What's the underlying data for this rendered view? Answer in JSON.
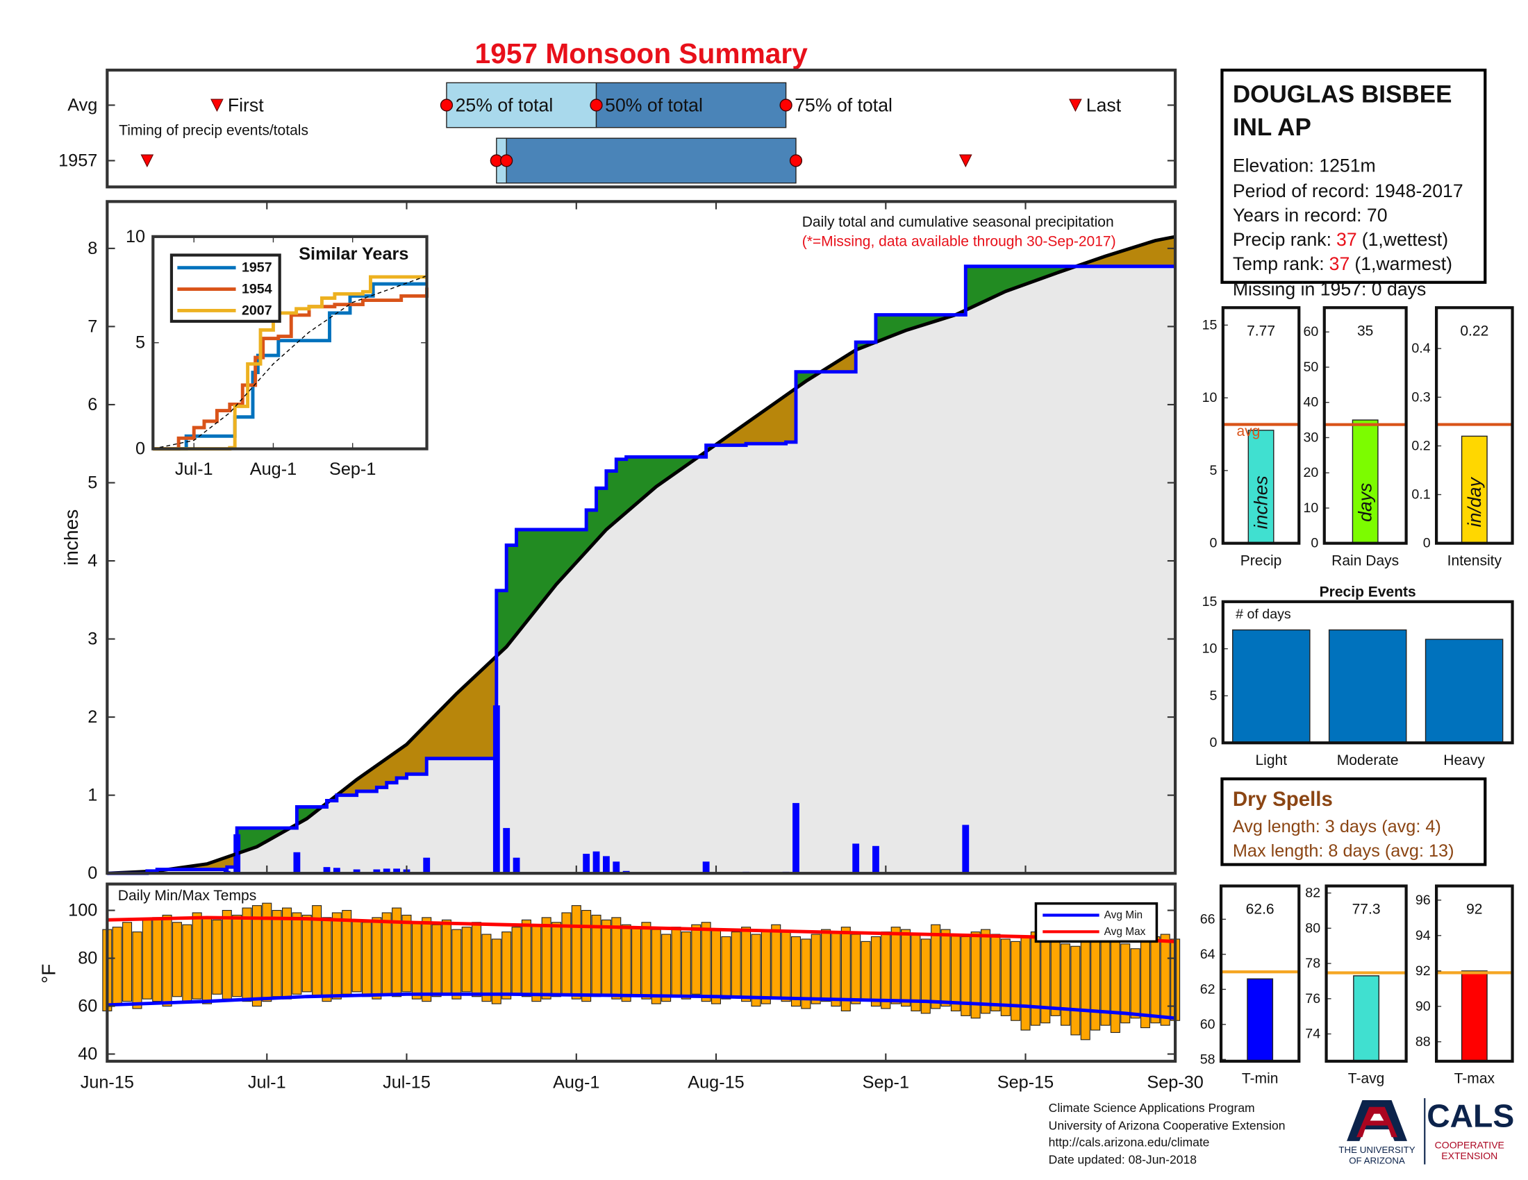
{
  "title": "1957 Monsoon Summary",
  "station": {
    "name": [
      "DOUGLAS BISBEE",
      "INL AP"
    ],
    "elevation": "Elevation: 1251m",
    "period": "Period of record: 1948-2017",
    "years": "Years in record: 70",
    "precip_rank": {
      "label": "Precip rank:",
      "value": 37,
      "note": "(1,wettest)"
    },
    "temp_rank": {
      "label": "Temp rank:",
      "value": 37,
      "note": "(1,warmest)"
    },
    "missing": "Missing in 1957: 0 days"
  },
  "dry_spells": {
    "title": "Dry Spells",
    "lines": [
      "Avg length: 3 days (avg: 4)",
      "Max length: 8 days (avg: 13)"
    ]
  },
  "footer": [
    "Climate Science Applications Program",
    "University of Arizona Cooperative Extension",
    "http://cals.arizona.edu/climate",
    " Date updated: 08-Jun-2018"
  ],
  "logos": {
    "university": [
      "THE UNIVERSITY",
      "OF ARIZONA"
    ],
    "cals": "CALS",
    "extension": [
      "COOPERATIVE",
      "EXTENSION"
    ]
  },
  "chart_data": [
    {
      "type": "timeline",
      "xlim": [
        "Jun-15",
        "Sep-30"
      ],
      "caption": "Timing of precip events/totals",
      "labels": {
        "first": "First",
        "q25": "25% of total",
        "q50": "50% of total",
        "q75": "75% of total",
        "last": "Last"
      },
      "colors": {
        "early": "#a9d9ec",
        "late": "#4a84b8",
        "marker": "#ff0000"
      },
      "rows": [
        {
          "label": "Avg",
          "first": "Jun-26",
          "q25": "Jul-19",
          "q50": "Aug-3",
          "q75": "Aug-22",
          "last": "Sep-20"
        },
        {
          "label": "1957",
          "first": "Jun-19",
          "q25": "Jul-24",
          "q50": "Jul-25",
          "q75": "Aug-23",
          "last": "Sep-9"
        }
      ]
    },
    {
      "type": "cumulative-step",
      "xlim": [
        "Jun-15",
        "Sep-30"
      ],
      "ylim": [
        0,
        8.6
      ],
      "yticks": [
        0,
        1,
        2,
        3,
        4,
        5,
        6,
        7,
        8
      ],
      "ylabel": "inches",
      "annotation": "Daily total and cumulative seasonal precipitation",
      "note": "(*=Missing, data available through 30-Sep-2017)",
      "colors": {
        "surplus": "#228b22",
        "deficit": "#b8860b",
        "base": "#e8e8e8"
      },
      "series": [
        {
          "color": "#0000ff",
          "cumulative": true,
          "x": [
            "Jun-19",
            "Jun-20",
            "Jun-27",
            "Jun-28",
            "Jul-4",
            "Jul-7",
            "Jul-8",
            "Jul-10",
            "Jul-12",
            "Jul-13",
            "Jul-14",
            "Jul-15",
            "Jul-17",
            "Jul-24",
            "Jul-25",
            "Jul-26",
            "Aug-2",
            "Aug-3",
            "Aug-4",
            "Aug-5",
            "Aug-6",
            "Aug-14",
            "Aug-18",
            "Aug-22",
            "Aug-23",
            "Aug-29",
            "Aug-31",
            "Sep-9"
          ],
          "values": [
            0.03,
            0.02,
            0.03,
            0.5,
            0.27,
            0.08,
            0.07,
            0.05,
            0.05,
            0.06,
            0.06,
            0.05,
            0.2,
            2.15,
            0.58,
            0.2,
            0.25,
            0.28,
            0.22,
            0.15,
            0.03,
            0.15,
            0.02,
            0.02,
            0.9,
            0.38,
            0.35,
            0.62
          ]
        },
        {
          "color": "#000000",
          "cumulative": false,
          "x": [
            "Jun-15",
            "Jun-20",
            "Jun-25",
            "Jun-30",
            "Jul-5",
            "Jul-10",
            "Jul-15",
            "Jul-20",
            "Jul-25",
            "Jul-30",
            "Aug-4",
            "Aug-9",
            "Aug-14",
            "Aug-19",
            "Aug-24",
            "Aug-29",
            "Sep-3",
            "Sep-8",
            "Sep-13",
            "Sep-18",
            "Sep-23",
            "Sep-28",
            "Sep-30"
          ],
          "values": [
            0,
            0.03,
            0.12,
            0.34,
            0.7,
            1.2,
            1.65,
            2.3,
            2.9,
            3.7,
            4.4,
            4.95,
            5.4,
            5.85,
            6.3,
            6.7,
            6.95,
            7.15,
            7.45,
            7.68,
            7.9,
            8.1,
            8.15
          ]
        }
      ]
    },
    {
      "type": "range-bar",
      "title": "Daily Min/Max Temps",
      "ylabel": "°F",
      "ylim": [
        37,
        111
      ],
      "yticks": [
        40,
        60,
        80,
        100
      ],
      "color": "#ffa500",
      "xlim": [
        "Jun-15",
        "Sep-30"
      ],
      "xticks": [
        "Jun-15",
        "Jul-1",
        "Jul-15",
        "Aug-1",
        "Aug-15",
        "Sep-1",
        "Sep-15",
        "Sep-30"
      ],
      "x": [
        "Jun-15",
        "Jun-16",
        "Jun-17",
        "Jun-18",
        "Jun-19",
        "Jun-20",
        "Jun-21",
        "Jun-22",
        "Jun-23",
        "Jun-24",
        "Jun-25",
        "Jun-26",
        "Jun-27",
        "Jun-28",
        "Jun-29",
        "Jun-30",
        "Jul-1",
        "Jul-2",
        "Jul-3",
        "Jul-4",
        "Jul-5",
        "Jul-6",
        "Jul-7",
        "Jul-8",
        "Jul-9",
        "Jul-10",
        "Jul-11",
        "Jul-12",
        "Jul-13",
        "Jul-14",
        "Jul-15",
        "Jul-16",
        "Jul-17",
        "Jul-18",
        "Jul-19",
        "Jul-20",
        "Jul-21",
        "Jul-22",
        "Jul-23",
        "Jul-24",
        "Jul-25",
        "Jul-26",
        "Jul-27",
        "Jul-28",
        "Jul-29",
        "Jul-30",
        "Jul-31",
        "Aug-1",
        "Aug-2",
        "Aug-3",
        "Aug-4",
        "Aug-5",
        "Aug-6",
        "Aug-7",
        "Aug-8",
        "Aug-9",
        "Aug-10",
        "Aug-11",
        "Aug-12",
        "Aug-13",
        "Aug-14",
        "Aug-15",
        "Aug-16",
        "Aug-17",
        "Aug-18",
        "Aug-19",
        "Aug-20",
        "Aug-21",
        "Aug-22",
        "Aug-23",
        "Aug-24",
        "Aug-25",
        "Aug-26",
        "Aug-27",
        "Aug-28",
        "Aug-29",
        "Aug-30",
        "Aug-31",
        "Sep-1",
        "Sep-2",
        "Sep-3",
        "Sep-4",
        "Sep-5",
        "Sep-6",
        "Sep-7",
        "Sep-8",
        "Sep-9",
        "Sep-10",
        "Sep-11",
        "Sep-12",
        "Sep-13",
        "Sep-14",
        "Sep-15",
        "Sep-16",
        "Sep-17",
        "Sep-18",
        "Sep-19",
        "Sep-20",
        "Sep-21",
        "Sep-22",
        "Sep-23",
        "Sep-24",
        "Sep-25",
        "Sep-26",
        "Sep-27",
        "Sep-28",
        "Sep-29",
        "Sep-30"
      ],
      "high": [
        92,
        93,
        95,
        91,
        96,
        97,
        98,
        95,
        94,
        99,
        97,
        96,
        100,
        98,
        101,
        102,
        103,
        100,
        101,
        99,
        98,
        102,
        97,
        99,
        100,
        96,
        95,
        97,
        99,
        101,
        98,
        95,
        97,
        94,
        96,
        92,
        93,
        95,
        90,
        88,
        91,
        93,
        96,
        94,
        97,
        95,
        99,
        102,
        100,
        98,
        96,
        97,
        94,
        93,
        95,
        92,
        90,
        93,
        91,
        94,
        95,
        92,
        89,
        91,
        93,
        90,
        92,
        94,
        91,
        89,
        88,
        90,
        92,
        91,
        93,
        90,
        87,
        89,
        91,
        93,
        92,
        90,
        88,
        94,
        92,
        90,
        89,
        91,
        92,
        90,
        88,
        87,
        89,
        91,
        90,
        88,
        86,
        85,
        87,
        89,
        90,
        88,
        86,
        84,
        87,
        89,
        90,
        88
      ],
      "low": [
        58,
        61,
        62,
        59,
        63,
        62,
        60,
        64,
        62,
        63,
        61,
        65,
        63,
        64,
        62,
        60,
        62,
        64,
        63,
        65,
        66,
        64,
        62,
        63,
        65,
        66,
        64,
        63,
        65,
        64,
        66,
        63,
        62,
        64,
        65,
        63,
        66,
        64,
        62,
        61,
        63,
        65,
        64,
        62,
        63,
        64,
        65,
        63,
        62,
        64,
        65,
        63,
        62,
        64,
        63,
        61,
        62,
        64,
        63,
        65,
        62,
        61,
        63,
        64,
        62,
        60,
        61,
        63,
        62,
        60,
        59,
        61,
        62,
        60,
        58,
        61,
        63,
        60,
        59,
        61,
        60,
        58,
        57,
        59,
        60,
        58,
        56,
        55,
        57,
        58,
        56,
        54,
        50,
        52,
        53,
        56,
        52,
        48,
        46,
        50,
        52,
        49,
        53,
        55,
        51,
        53,
        52,
        54
      ],
      "series": [
        {
          "name": "Avg Min",
          "color": "#0000ff",
          "x": [
            "Jun-15",
            "Jun-25",
            "Jul-5",
            "Jul-15",
            "Jul-25",
            "Aug-5",
            "Aug-15",
            "Aug-25",
            "Sep-5",
            "Sep-15",
            "Sep-25",
            "Sep-30"
          ],
          "values": [
            60.5,
            62,
            64,
            65,
            65,
            64.5,
            64,
            63,
            62,
            60,
            57,
            55
          ]
        },
        {
          "name": "Avg Max",
          "color": "#ff0000",
          "x": [
            "Jun-15",
            "Jun-25",
            "Jul-5",
            "Jul-15",
            "Jul-25",
            "Aug-5",
            "Aug-15",
            "Aug-25",
            "Sep-5",
            "Sep-15",
            "Sep-25",
            "Sep-30"
          ],
          "values": [
            96,
            97,
            96.5,
            95,
            94,
            93,
            92,
            91,
            90,
            89,
            88,
            87
          ]
        }
      ]
    },
    {
      "type": "line",
      "title": "Similar Years",
      "xlim": [
        "Jun-15",
        "Sep-30"
      ],
      "xticks": [
        "Jul-1",
        "Aug-1",
        "Sep-1"
      ],
      "ylim": [
        0,
        10
      ],
      "yticks": [
        0,
        5,
        10
      ],
      "series": [
        {
          "name": "1957",
          "color": "#0072bd",
          "x": [
            "Jun-15",
            "Jun-28",
            "Jul-17",
            "Jul-24",
            "Jul-26",
            "Aug-3",
            "Aug-23",
            "Aug-31",
            "Sep-9",
            "Sep-30"
          ],
          "values": [
            0,
            0.6,
            1.5,
            3.6,
            4.4,
            5.1,
            6.4,
            7.2,
            7.77,
            7.77
          ]
        },
        {
          "name": "1954",
          "color": "#d95319",
          "x": [
            "Jun-15",
            "Jun-25",
            "Jul-1",
            "Jul-5",
            "Jul-10",
            "Jul-15",
            "Jul-20",
            "Jul-25",
            "Jul-28",
            "Aug-3",
            "Aug-8",
            "Aug-15",
            "Aug-25",
            "Sep-5",
            "Sep-20",
            "Sep-30"
          ],
          "values": [
            0,
            0.5,
            1,
            1.3,
            1.8,
            2.1,
            3,
            4.3,
            5.2,
            5.3,
            6.3,
            6.7,
            6.8,
            7,
            7.2,
            7.6
          ]
        },
        {
          "name": "2007",
          "color": "#edb120",
          "x": [
            "Jun-15",
            "Jul-15",
            "Jul-17",
            "Jul-22",
            "Jul-27",
            "Aug-1",
            "Aug-10",
            "Aug-15",
            "Aug-20",
            "Aug-25",
            "Sep-5",
            "Sep-8",
            "Sep-30"
          ],
          "values": [
            0,
            0.05,
            2,
            4,
            5.6,
            6.4,
            6.6,
            6.7,
            7.1,
            7.3,
            7.4,
            8.1,
            8.1
          ]
        },
        {
          "color": "#000000",
          "style": "dashed",
          "x": [
            "Jun-15",
            "Jul-1",
            "Jul-15",
            "Aug-1",
            "Aug-15",
            "Sep-1",
            "Sep-15",
            "Sep-30"
          ],
          "values": [
            0,
            0.4,
            1.7,
            4,
            5.5,
            6.9,
            7.5,
            8.15
          ]
        }
      ]
    },
    {
      "type": "bar",
      "categories": [
        "Precip"
      ],
      "values": [
        7.77
      ],
      "color": "#40e0d0",
      "unit_label": "inches",
      "avg": 8.17,
      "avg_label": "avg",
      "avg_color": "#d95319",
      "ylim": [
        0,
        16.2
      ],
      "yticks": [
        0,
        5,
        10,
        15
      ],
      "show_values": true
    },
    {
      "type": "bar",
      "categories": [
        "Rain Days"
      ],
      "values": [
        35
      ],
      "color": "#7cfc00",
      "unit_label": "days",
      "avg": 33.7,
      "avg_color": "#d95319",
      "ylim": [
        0,
        66.9
      ],
      "yticks": [
        0,
        10,
        20,
        30,
        40,
        50,
        60
      ],
      "show_values": true
    },
    {
      "type": "bar",
      "categories": [
        "Intensity"
      ],
      "values": [
        0.22
      ],
      "color": "#ffd700",
      "unit_label": "in/day",
      "avg": 0.244,
      "avg_color": "#d95319",
      "ylim": [
        0,
        0.484
      ],
      "yticks": [
        0,
        0.1,
        0.2,
        0.3,
        0.4
      ],
      "show_values": true
    },
    {
      "type": "bar",
      "title": "Precip Events",
      "annotation": "# of days",
      "categories": [
        "Light",
        "Moderate",
        "Heavy"
      ],
      "values": [
        12,
        12,
        11
      ],
      "color": "#0072bd",
      "ylim": [
        0,
        15
      ],
      "yticks": [
        0,
        5,
        10,
        15
      ]
    },
    {
      "type": "bar",
      "categories": [
        "T-min"
      ],
      "values": [
        62.6
      ],
      "color": "#0000ff",
      "avg": 63,
      "avg_color": "#f5a623",
      "ylim": [
        57.9,
        67.9
      ],
      "yticks": [
        58,
        60,
        62,
        64,
        66
      ],
      "show_values": true
    },
    {
      "type": "bar",
      "categories": [
        "T-avg"
      ],
      "values": [
        77.3
      ],
      "color": "#40e0d0",
      "avg": 77.47,
      "avg_color": "#f5a623",
      "ylim": [
        72.45,
        82.4
      ],
      "yticks": [
        74,
        76,
        78,
        80,
        82
      ],
      "show_values": true
    },
    {
      "type": "bar",
      "categories": [
        "T-max"
      ],
      "values": [
        92
      ],
      "color": "#ff0000",
      "avg": 91.9,
      "avg_color": "#f5a623",
      "ylim": [
        86.9,
        96.8
      ],
      "yticks": [
        88,
        90,
        92,
        94,
        96
      ],
      "show_values": true
    }
  ]
}
